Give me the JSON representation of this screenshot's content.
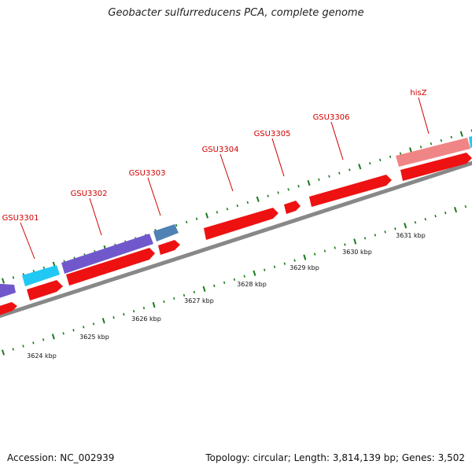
{
  "title": "Geobacter sulfurreducens PCA, complete genome",
  "footer": {
    "accession": "Accession: NC_002939",
    "stats": "Topology: circular; Length: 3,814,139 bp; Genes: 3,502"
  },
  "colors": {
    "cds_red": "#ee1111",
    "purple": "#7058cc",
    "cyan": "#22c8f4",
    "steel_blue": "#4f82b4",
    "pink": "#f08585",
    "backbone": "#888888",
    "tick_green": "#1a7a1a",
    "label_red": "#d00000"
  },
  "gene_labels": [
    "GSU3301",
    "GSU3302",
    "GSU3303",
    "GSU3304",
    "GSU3305",
    "GSU3306",
    "hisZ"
  ],
  "kbp_labels": [
    "3624 kbp",
    "3625 kbp",
    "3626 kbp",
    "3627 kbp",
    "3628 kbp",
    "3629 kbp",
    "3630 kbp",
    "3631 kbp"
  ]
}
